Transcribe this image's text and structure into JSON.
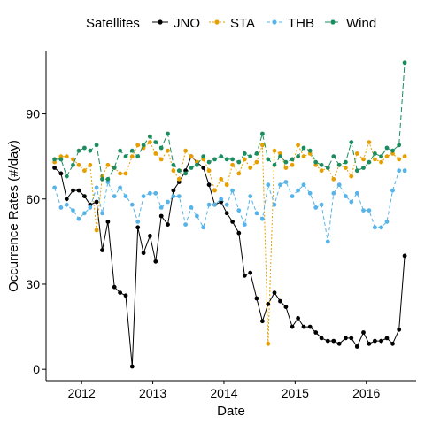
{
  "chart_data": {
    "type": "line",
    "xlabel": "Date",
    "ylabel": "Occurrence Rates (#/day)",
    "xlim": [
      2011.5,
      2016.7
    ],
    "ylim": [
      -4,
      112
    ],
    "x_ticks": [
      2012,
      2013,
      2014,
      2015,
      2016
    ],
    "y_ticks": [
      0,
      30,
      60,
      90
    ],
    "grid": false,
    "legend": {
      "title": "Satellites",
      "position": "top"
    },
    "series": [
      {
        "name": "JNO",
        "color": "#000000",
        "dash": "solid",
        "x": [
          2011.62,
          2011.71,
          2011.79,
          2011.88,
          2011.96,
          2012.04,
          2012.12,
          2012.21,
          2012.29,
          2012.37,
          2012.46,
          2012.54,
          2012.62,
          2012.71,
          2012.79,
          2012.87,
          2012.96,
          2013.04,
          2013.12,
          2013.21,
          2013.29,
          2013.37,
          2013.46,
          2013.54,
          2013.62,
          2013.71,
          2013.79,
          2013.87,
          2013.96,
          2014.04,
          2014.12,
          2014.21,
          2014.29,
          2014.37,
          2014.46,
          2014.54,
          2014.62,
          2014.71,
          2014.79,
          2014.87,
          2014.96,
          2015.04,
          2015.12,
          2015.21,
          2015.29,
          2015.37,
          2015.46,
          2015.54,
          2015.62,
          2015.71,
          2015.79,
          2015.87,
          2015.96,
          2016.04,
          2016.12,
          2016.21,
          2016.29,
          2016.37,
          2016.46,
          2016.54
        ],
        "y": [
          71,
          69,
          60,
          63,
          63,
          61,
          58,
          59,
          42,
          52,
          29,
          27,
          26,
          1,
          50,
          41,
          47,
          38,
          54,
          51,
          63,
          66,
          70,
          75,
          73,
          71,
          65,
          58,
          59,
          55,
          52,
          48,
          33,
          34,
          25,
          17,
          23,
          27,
          24,
          22,
          15,
          18,
          15,
          15,
          13,
          11,
          10,
          10,
          9,
          11,
          11,
          8,
          13,
          9,
          10,
          10,
          11,
          9,
          14,
          40
        ]
      },
      {
        "name": "STA",
        "color": "#E69F00",
        "dash": "2,2",
        "x": [
          2011.62,
          2011.71,
          2011.79,
          2011.88,
          2011.96,
          2012.04,
          2012.12,
          2012.21,
          2012.29,
          2012.37,
          2012.46,
          2012.54,
          2012.62,
          2012.71,
          2012.79,
          2012.87,
          2012.96,
          2013.04,
          2013.12,
          2013.21,
          2013.29,
          2013.37,
          2013.46,
          2013.54,
          2013.62,
          2013.71,
          2013.79,
          2013.87,
          2013.96,
          2014.04,
          2014.12,
          2014.21,
          2014.29,
          2014.37,
          2014.46,
          2014.54,
          2014.62,
          2014.71,
          2014.79,
          2014.87,
          2014.96,
          2015.04,
          2015.12,
          2015.21,
          2015.29,
          2015.37,
          2015.46,
          2015.54,
          2015.62,
          2015.71,
          2015.79,
          2015.87,
          2015.96,
          2016.04,
          2016.12,
          2016.21,
          2016.29,
          2016.37,
          2016.46,
          2016.54
        ],
        "y": [
          73,
          75,
          75,
          74,
          72,
          70,
          72,
          49,
          68,
          72,
          71,
          69,
          69,
          75,
          79,
          78,
          80,
          76,
          74,
          77,
          70,
          67,
          77,
          75,
          73,
          74,
          70,
          63,
          67,
          65,
          72,
          69,
          74,
          71,
          73,
          79,
          9,
          77,
          76,
          71,
          72,
          79,
          75,
          76,
          72,
          70,
          71,
          67,
          72,
          71,
          68,
          76,
          74,
          80,
          74,
          73,
          75,
          76,
          74,
          75
        ]
      },
      {
        "name": "THB",
        "color": "#56B4E9",
        "dash": "4,3",
        "x": [
          2011.62,
          2011.71,
          2011.79,
          2011.88,
          2011.96,
          2012.04,
          2012.12,
          2012.21,
          2012.29,
          2012.37,
          2012.46,
          2012.54,
          2012.62,
          2012.71,
          2012.79,
          2012.87,
          2012.96,
          2013.04,
          2013.12,
          2013.21,
          2013.29,
          2013.37,
          2013.46,
          2013.54,
          2013.62,
          2013.71,
          2013.79,
          2013.87,
          2013.96,
          2014.04,
          2014.12,
          2014.21,
          2014.29,
          2014.37,
          2014.46,
          2014.54,
          2014.62,
          2014.71,
          2014.79,
          2014.87,
          2014.96,
          2015.04,
          2015.12,
          2015.21,
          2015.29,
          2015.37,
          2015.46,
          2015.54,
          2015.62,
          2015.71,
          2015.79,
          2015.87,
          2015.96,
          2016.04,
          2016.12,
          2016.21,
          2016.29,
          2016.37,
          2016.46,
          2016.54
        ],
        "y": [
          64,
          57,
          58,
          56,
          53,
          55,
          57,
          64,
          55,
          66,
          61,
          64,
          61,
          58,
          52,
          61,
          62,
          62,
          57,
          59,
          61,
          61,
          51,
          57,
          54,
          50,
          58,
          58,
          60,
          58,
          63,
          56,
          51,
          61,
          55,
          53,
          65,
          58,
          65,
          66,
          61,
          63,
          65,
          62,
          57,
          58,
          45,
          62,
          65,
          61,
          59,
          62,
          56,
          56,
          50,
          50,
          52,
          63,
          70,
          70
        ]
      },
      {
        "name": "Wind",
        "color": "#1B8C5E",
        "dash": "6,3",
        "x": [
          2011.62,
          2011.71,
          2011.79,
          2011.88,
          2011.96,
          2012.04,
          2012.12,
          2012.21,
          2012.29,
          2012.37,
          2012.46,
          2012.54,
          2012.62,
          2012.71,
          2012.79,
          2012.87,
          2012.96,
          2013.04,
          2013.12,
          2013.21,
          2013.29,
          2013.37,
          2013.46,
          2013.54,
          2013.62,
          2013.71,
          2013.79,
          2013.87,
          2013.96,
          2014.04,
          2014.12,
          2014.21,
          2014.29,
          2014.37,
          2014.46,
          2014.54,
          2014.62,
          2014.71,
          2014.79,
          2014.87,
          2014.96,
          2015.04,
          2015.12,
          2015.21,
          2015.29,
          2015.37,
          2015.46,
          2015.54,
          2015.62,
          2015.71,
          2015.79,
          2015.87,
          2015.96,
          2016.04,
          2016.12,
          2016.21,
          2016.29,
          2016.37,
          2016.46,
          2016.54
        ],
        "y": [
          74,
          74,
          68,
          72,
          77,
          78,
          77,
          79,
          67,
          67,
          71,
          77,
          75,
          77,
          75,
          79,
          82,
          80,
          78,
          83,
          72,
          70,
          69,
          71,
          72,
          75,
          73,
          74,
          75,
          74,
          74,
          73,
          76,
          75,
          76,
          83,
          74,
          72,
          75,
          73,
          74,
          75,
          78,
          77,
          73,
          72,
          71,
          75,
          72,
          73,
          80,
          70,
          71,
          73,
          76,
          75,
          78,
          77,
          79,
          108
        ]
      }
    ]
  }
}
